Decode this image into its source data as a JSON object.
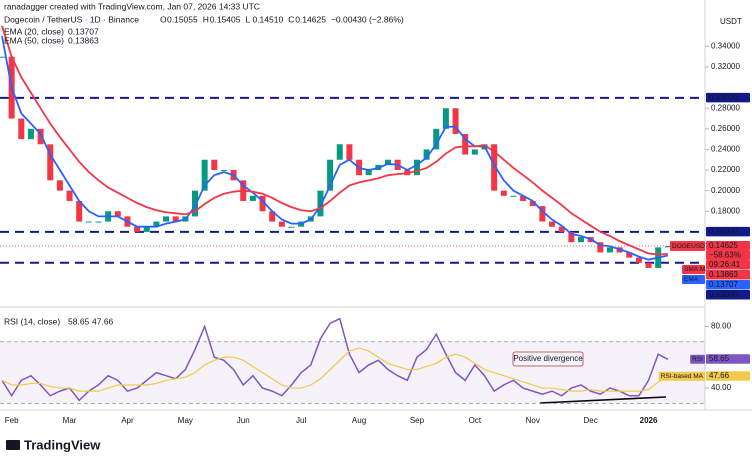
{
  "header": {
    "credit": "ranadagger created with TradingView.com, Jan 07, 2026 14:33 UTC",
    "symbol": "Dogecoin / TetherUS · 1D · Binance",
    "ohlc": [
      {
        "key": "O",
        "value": "0.15055"
      },
      {
        "key": "H",
        "value": "0.15405"
      },
      {
        "key": "L",
        "value": "0.14510"
      },
      {
        "key": "C",
        "value": "0.14625"
      }
    ],
    "change": "−0.00430 (−2.86%)",
    "currency": "USDT"
  },
  "footer": {
    "logo": "TradingView"
  },
  "chart_data": [
    {
      "type": "candlestick",
      "categories": [
        null,
        "Feb",
        null,
        null,
        null,
        null,
        null,
        "Mar",
        null,
        null,
        null,
        null,
        null,
        "Apr",
        null,
        null,
        null,
        null,
        null,
        "May",
        null,
        null,
        null,
        null,
        null,
        "Jun",
        null,
        null,
        null,
        null,
        null,
        "Jul",
        null,
        null,
        null,
        null,
        null,
        "Aug",
        null,
        null,
        null,
        null,
        null,
        "Sep",
        null,
        null,
        null,
        null,
        null,
        "Oct",
        null,
        null,
        null,
        null,
        null,
        "Nov",
        null,
        null,
        null,
        null,
        null,
        "Dec",
        null,
        null,
        null,
        null,
        null,
        "2026",
        null,
        null
      ],
      "series": [
        {
          "name": "DOGEUSDT",
          "up_color": "#089981",
          "down_color": "#f23645",
          "values": [
            0.33,
            0.27,
            0.25,
            0.26,
            0.245,
            0.21,
            0.2,
            0.19,
            0.17,
            0.17,
            0.17,
            0.18,
            0.175,
            0.165,
            0.16,
            0.165,
            0.17,
            0.175,
            0.17,
            0.175,
            0.2,
            0.23,
            0.22,
            0.22,
            0.21,
            0.19,
            0.195,
            0.18,
            0.17,
            0.165,
            0.165,
            0.17,
            0.175,
            0.2,
            0.23,
            0.245,
            0.23,
            0.215,
            0.22,
            0.225,
            0.23,
            0.22,
            0.215,
            0.23,
            0.24,
            0.26,
            0.28,
            0.255,
            0.235,
            0.24,
            0.245,
            0.2,
            0.195,
            0.195,
            0.19,
            0.185,
            0.17,
            0.165,
            0.16,
            0.15,
            0.155,
            0.15,
            0.14,
            0.145,
            0.14,
            0.135,
            0.13,
            0.125,
            0.145,
            0.14625
          ]
        },
        {
          "name": "EMA (20, close)",
          "color": "#2962ff",
          "axis_tag": "EMA",
          "legend_value": "0.13707",
          "values": [
            0.35,
            0.3,
            0.275,
            0.265,
            0.255,
            0.235,
            0.22,
            0.205,
            0.19,
            0.18,
            0.175,
            0.175,
            0.175,
            0.17,
            0.165,
            0.165,
            0.165,
            0.168,
            0.17,
            0.172,
            0.185,
            0.205,
            0.215,
            0.218,
            0.215,
            0.205,
            0.198,
            0.19,
            0.18,
            0.172,
            0.168,
            0.168,
            0.172,
            0.185,
            0.205,
            0.225,
            0.23,
            0.222,
            0.22,
            0.222,
            0.226,
            0.225,
            0.22,
            0.225,
            0.232,
            0.245,
            0.262,
            0.262,
            0.25,
            0.243,
            0.243,
            0.225,
            0.21,
            0.2,
            0.195,
            0.19,
            0.18,
            0.172,
            0.166,
            0.158,
            0.156,
            0.153,
            0.147,
            0.146,
            0.143,
            0.14,
            0.136,
            0.133,
            0.135,
            0.13707
          ]
        },
        {
          "name": "EMA (50, close)",
          "color": "#f23645",
          "axis_tag": "SMA:MA",
          "legend_value": "0.13863",
          "values": [
            0.36,
            0.33,
            0.31,
            0.295,
            0.28,
            0.265,
            0.252,
            0.24,
            0.228,
            0.218,
            0.21,
            0.203,
            0.198,
            0.193,
            0.188,
            0.184,
            0.181,
            0.179,
            0.178,
            0.177,
            0.18,
            0.187,
            0.193,
            0.197,
            0.199,
            0.2,
            0.199,
            0.197,
            0.193,
            0.188,
            0.184,
            0.181,
            0.18,
            0.183,
            0.19,
            0.198,
            0.205,
            0.208,
            0.21,
            0.212,
            0.215,
            0.216,
            0.217,
            0.219,
            0.222,
            0.228,
            0.236,
            0.242,
            0.243,
            0.243,
            0.244,
            0.238,
            0.23,
            0.222,
            0.215,
            0.208,
            0.2,
            0.193,
            0.186,
            0.178,
            0.172,
            0.166,
            0.16,
            0.156,
            0.151,
            0.147,
            0.143,
            0.139,
            0.138,
            0.13863
          ]
        }
      ],
      "ylim": [
        0.09,
        0.385
      ],
      "yticks": [
        {
          "value": 0.34,
          "label": "0.34000"
        },
        {
          "value": 0.32,
          "label": "0.32000"
        },
        {
          "value": 0.28,
          "label": "0.28000"
        },
        {
          "value": 0.26,
          "label": "0.26000"
        },
        {
          "value": 0.24,
          "label": "0.24000"
        },
        {
          "value": 0.22,
          "label": "0.22000"
        },
        {
          "value": 0.2,
          "label": "0.20000"
        },
        {
          "value": 0.18,
          "label": "0.18000"
        }
      ],
      "levels": [
        {
          "value": 0.29,
          "label": "0.29000"
        },
        {
          "value": 0.16,
          "label": "0.16000"
        },
        {
          "value": 0.13,
          "label": "0.13000"
        }
      ],
      "level_color": "#131a8c",
      "last_price": {
        "value": 0.14625,
        "label": "0.14625",
        "change": "−58.63%",
        "countdown": "09:26:41"
      },
      "grid": false
    },
    {
      "type": "line",
      "title": "RSI (14, close)",
      "series": [
        {
          "name": "RSI",
          "color": "#7e57c2",
          "legend_value": "58.65",
          "values": [
            45,
            35,
            45,
            48,
            42,
            35,
            38,
            40,
            32,
            38,
            42,
            48,
            45,
            38,
            40,
            45,
            50,
            48,
            46,
            52,
            65,
            80,
            60,
            58,
            52,
            42,
            48,
            40,
            38,
            35,
            42,
            50,
            55,
            72,
            82,
            85,
            62,
            50,
            55,
            58,
            52,
            48,
            45,
            60,
            65,
            75,
            62,
            50,
            45,
            55,
            48,
            38,
            42,
            45,
            40,
            38,
            36,
            38,
            35,
            40,
            42,
            38,
            36,
            40,
            38,
            35,
            35,
            45,
            62,
            58.65
          ]
        },
        {
          "name": "RSI-based MA",
          "color": "#f2c94c",
          "legend_value": "47.66",
          "values": [
            45,
            42,
            42,
            43,
            43,
            41,
            40,
            40,
            38,
            38,
            38,
            40,
            42,
            42,
            42,
            42,
            43,
            45,
            46,
            47,
            50,
            55,
            58,
            60,
            60,
            58,
            54,
            50,
            46,
            42,
            40,
            40,
            42,
            46,
            52,
            58,
            64,
            66,
            64,
            60,
            56,
            54,
            52,
            52,
            54,
            56,
            60,
            62,
            60,
            56,
            52,
            50,
            48,
            46,
            44,
            42,
            40,
            40,
            39,
            38,
            38,
            39,
            38,
            38,
            38,
            38,
            38,
            39,
            44,
            47.66
          ]
        }
      ],
      "ylim": [
        29,
        90
      ],
      "yticks": [
        {
          "value": 80,
          "label": "80.00"
        },
        {
          "value": 40,
          "label": "40.00"
        }
      ],
      "bands": [
        70,
        30
      ],
      "annotation": "Positive divergence",
      "grid": false
    }
  ]
}
